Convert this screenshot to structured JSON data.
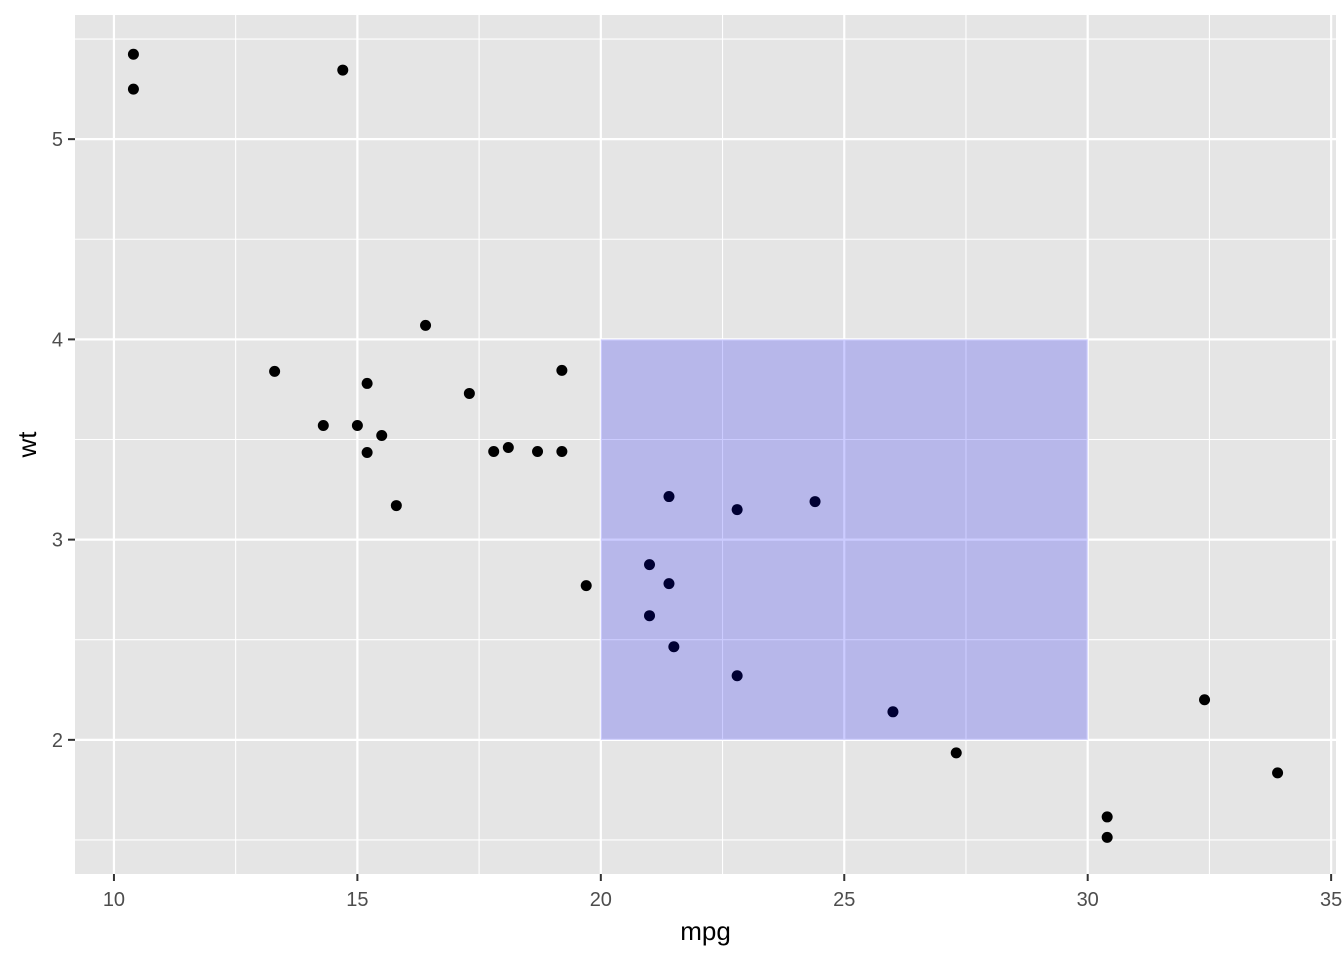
{
  "chart_data": {
    "type": "scatter",
    "xlabel": "mpg",
    "ylabel": "wt",
    "xlim": [
      9.2,
      35.1
    ],
    "ylim": [
      1.33,
      5.62
    ],
    "x_ticks": [
      10,
      15,
      20,
      25,
      30,
      35
    ],
    "x_tick_labels": [
      "10",
      "15",
      "20",
      "25",
      "30",
      "35"
    ],
    "y_ticks": [
      2,
      3,
      4,
      5
    ],
    "y_tick_labels": [
      "2",
      "3",
      "4",
      "5"
    ],
    "x_minor_ticks": [
      12.5,
      17.5,
      22.5,
      27.5,
      32.5
    ],
    "y_minor_ticks": [
      1.5,
      2.5,
      3.5,
      4.5,
      5.5
    ],
    "grid": true,
    "legend": "none",
    "highlight_rect": {
      "x": [
        20,
        30
      ],
      "y": [
        2,
        4
      ],
      "color": "#0000ff",
      "opacity": 0.2
    },
    "point_color": "#000000",
    "background_color": "#e5e5e5",
    "points": [
      {
        "x": 10.4,
        "y": 5.424
      },
      {
        "x": 10.4,
        "y": 5.25
      },
      {
        "x": 14.7,
        "y": 5.345
      },
      {
        "x": 16.4,
        "y": 4.07
      },
      {
        "x": 13.3,
        "y": 3.84
      },
      {
        "x": 19.2,
        "y": 3.845
      },
      {
        "x": 15.2,
        "y": 3.78
      },
      {
        "x": 17.3,
        "y": 3.73
      },
      {
        "x": 14.3,
        "y": 3.57
      },
      {
        "x": 15.0,
        "y": 3.57
      },
      {
        "x": 15.5,
        "y": 3.52
      },
      {
        "x": 18.1,
        "y": 3.46
      },
      {
        "x": 15.2,
        "y": 3.435
      },
      {
        "x": 17.8,
        "y": 3.44
      },
      {
        "x": 18.7,
        "y": 3.44
      },
      {
        "x": 19.2,
        "y": 3.44
      },
      {
        "x": 15.8,
        "y": 3.17
      },
      {
        "x": 19.7,
        "y": 2.77
      },
      {
        "x": 21.4,
        "y": 3.215
      },
      {
        "x": 22.8,
        "y": 3.15
      },
      {
        "x": 24.4,
        "y": 3.19
      },
      {
        "x": 21.0,
        "y": 2.875
      },
      {
        "x": 21.4,
        "y": 2.78
      },
      {
        "x": 21.0,
        "y": 2.62
      },
      {
        "x": 21.5,
        "y": 2.465
      },
      {
        "x": 22.8,
        "y": 2.32
      },
      {
        "x": 26.0,
        "y": 2.14
      },
      {
        "x": 27.3,
        "y": 1.935
      },
      {
        "x": 32.4,
        "y": 2.2
      },
      {
        "x": 33.9,
        "y": 1.835
      },
      {
        "x": 30.4,
        "y": 1.615
      },
      {
        "x": 30.4,
        "y": 1.513
      }
    ]
  }
}
